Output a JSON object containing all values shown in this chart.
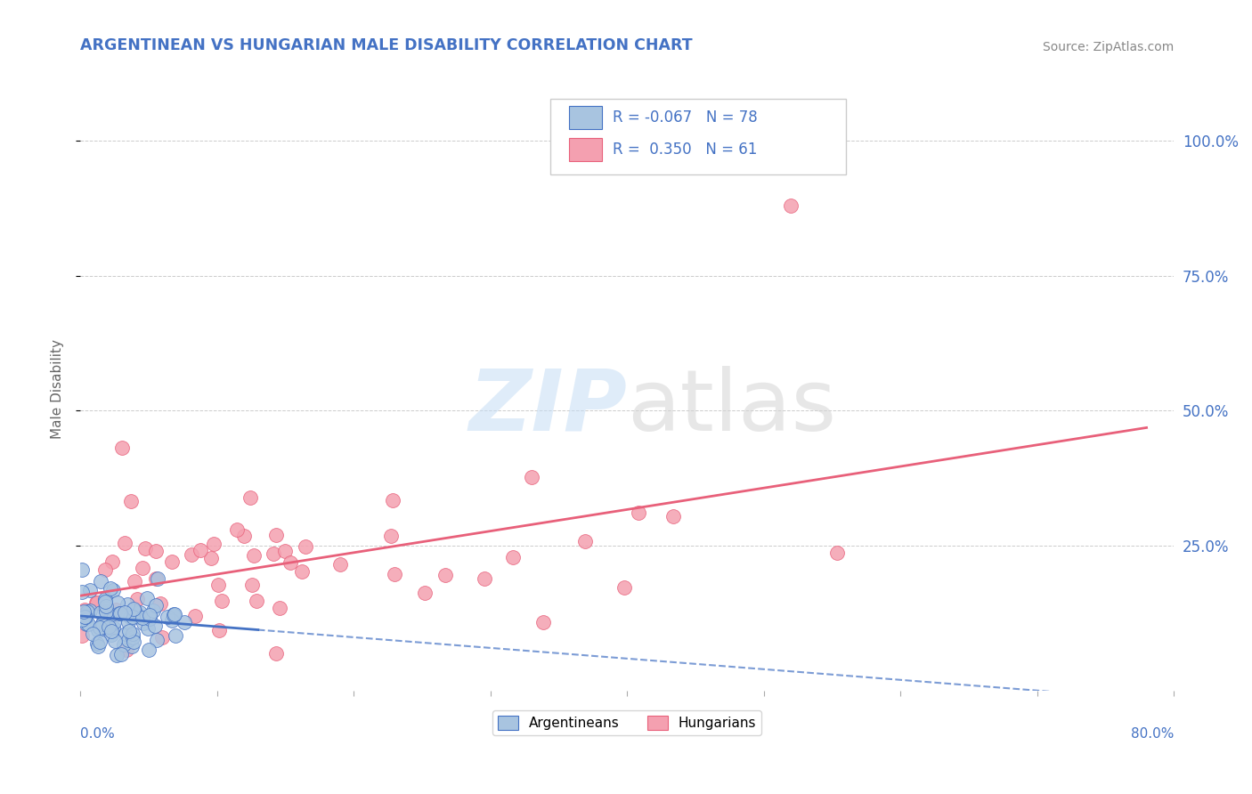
{
  "title": "ARGENTINEAN VS HUNGARIAN MALE DISABILITY CORRELATION CHART",
  "source": "Source: ZipAtlas.com",
  "ylabel": "Male Disability",
  "right_yticks": [
    "100.0%",
    "75.0%",
    "50.0%",
    "25.0%"
  ],
  "right_ytick_vals": [
    1.0,
    0.75,
    0.5,
    0.25
  ],
  "blue_color": "#a8c4e0",
  "pink_color": "#f4a0b0",
  "blue_line_color": "#4472c4",
  "pink_line_color": "#e8607a",
  "title_color": "#4472c4",
  "source_color": "#888888",
  "xlim": [
    0.0,
    0.8
  ],
  "ylim": [
    -0.02,
    1.1
  ],
  "background": "#ffffff",
  "grid_color": "#cccccc"
}
